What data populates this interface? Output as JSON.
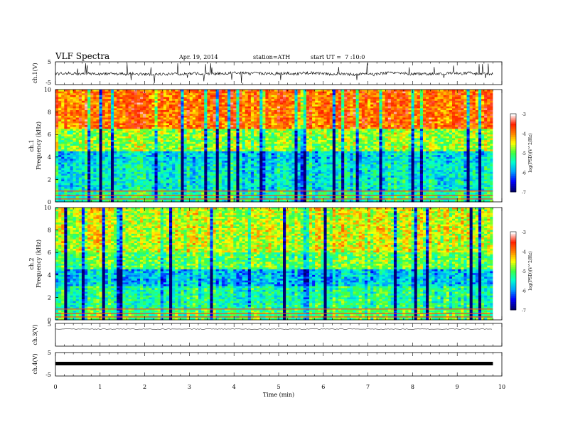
{
  "header": {
    "title": "VLF Spectra",
    "date": "Apr. 19, 2014",
    "station": "station=ATH",
    "start": "start UT =  7 :10:0"
  },
  "colors": {
    "background": "#ffffff",
    "axis": "#000000",
    "colormap": [
      "#000070",
      "#0000ff",
      "#00a0ff",
      "#00ffd0",
      "#40ff40",
      "#ffff00",
      "#ff8000",
      "#ff2000",
      "#ffffff"
    ]
  },
  "chart_data": [
    {
      "type": "line",
      "ylabel": "ch.1(V)",
      "ylim": [
        -5,
        5
      ],
      "yticks": [
        "5",
        "-5"
      ],
      "trace": "noisy waveform centred near 0 V with spikes toward -5 V"
    },
    {
      "type": "heatmap",
      "ylabel": "ch.1\nFrequency (kHz)",
      "ylim": [
        0,
        10
      ],
      "yticks": [
        "0",
        "2",
        "4",
        "6",
        "8",
        "10"
      ],
      "zlabel": "log(PSD)(V^2/Hz)",
      "colorbar_ticks": [
        "-3",
        "-4",
        "-5",
        "-6",
        "-7"
      ],
      "zlim": [
        -7,
        -3
      ]
    },
    {
      "type": "heatmap",
      "ylabel": "ch.2\nFrequency (kHz)",
      "ylim": [
        0,
        10
      ],
      "yticks": [
        "0",
        "2",
        "4",
        "6",
        "8",
        "10"
      ],
      "zlabel": "log(PSD)(V^2/Hz)",
      "colorbar_ticks": [
        "-3",
        "-4",
        "-5",
        "-6",
        "-7"
      ],
      "zlim": [
        -7,
        -3
      ]
    },
    {
      "type": "line",
      "ylabel": "ch.3(V)",
      "ylim": [
        -5,
        5
      ],
      "yticks": [
        "5"
      ],
      "trace": "flat near 0 V"
    },
    {
      "type": "line",
      "ylabel": "ch.4(V)",
      "ylim": [
        -5,
        5
      ],
      "yticks": [
        "5",
        "-5"
      ],
      "trace": "thick flat band near 0 V"
    }
  ],
  "xaxis": {
    "label": "Time (min)",
    "xlim": [
      0,
      10
    ],
    "ticks": [
      "0",
      "1",
      "2",
      "3",
      "4",
      "5",
      "6",
      "7",
      "8",
      "9",
      "10"
    ],
    "data_end": 9.8
  }
}
